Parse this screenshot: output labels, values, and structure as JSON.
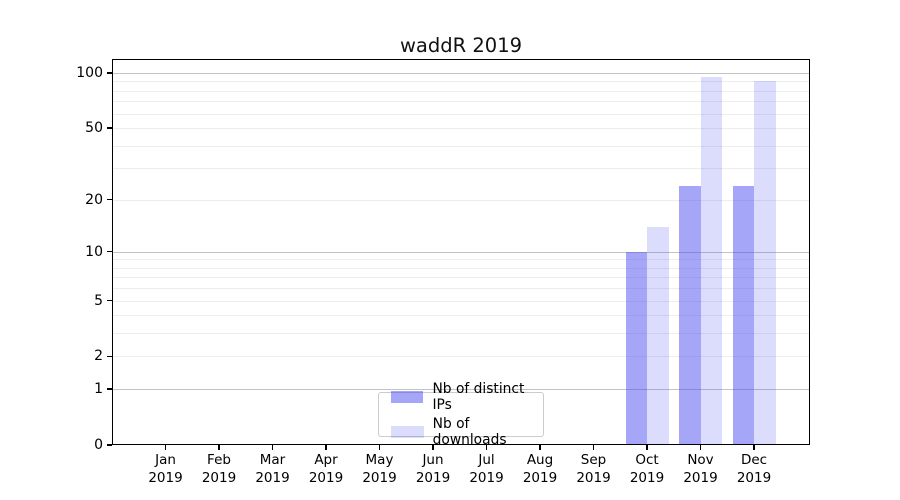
{
  "chart_data": {
    "type": "bar",
    "title": "waddR 2019",
    "x": [
      "Jan 2019",
      "Feb 2019",
      "Mar 2019",
      "Apr 2019",
      "May 2019",
      "Jun 2019",
      "Jul 2019",
      "Aug 2019",
      "Sep 2019",
      "Oct 2019",
      "Nov 2019",
      "Dec 2019"
    ],
    "series": [
      {
        "name": "Nb of distinct IPs",
        "values": [
          0,
          0,
          0,
          0,
          0,
          0,
          0,
          0,
          0,
          10,
          24,
          24
        ],
        "fill": "rgba(70,70,240,0.48)"
      },
      {
        "name": "Nb of downloads",
        "values": [
          0,
          0,
          0,
          0,
          0,
          0,
          0,
          0,
          0,
          14,
          95,
          90
        ],
        "fill": "rgba(70,70,240,0.19)"
      }
    ],
    "yticks": [
      0,
      1,
      2,
      5,
      10,
      20,
      50,
      100
    ],
    "major_gridlines": [
      1,
      10,
      100
    ],
    "minor_gridlines": [
      2,
      3,
      4,
      5,
      6,
      7,
      8,
      9,
      20,
      30,
      40,
      50,
      60,
      70,
      80,
      90
    ],
    "ylim": [
      0,
      119
    ],
    "yscale": "log10(value+1)",
    "xlabel": "",
    "ylabel": "",
    "grid": true,
    "legend_position": "inside lower center",
    "colors": {
      "axis": "#000000",
      "major_grid": "#c3c3c3",
      "minor_grid": "#ededed"
    }
  }
}
